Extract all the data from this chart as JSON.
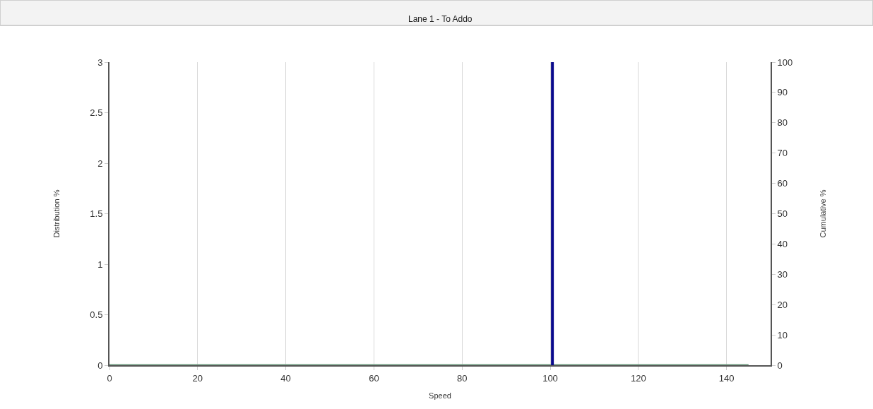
{
  "chart_data": {
    "type": "line",
    "title": "Lane 1 - To Addo",
    "xlabel": "Speed",
    "ylabel": "Distribution %",
    "y2label": "Cumulative %",
    "xlim": [
      0,
      150
    ],
    "xticks": [
      0,
      20,
      40,
      60,
      80,
      100,
      120,
      140
    ],
    "ylim": [
      0,
      3
    ],
    "yticks": [
      0,
      0.5,
      1,
      1.5,
      2,
      2.5,
      3
    ],
    "y2lim": [
      0,
      100
    ],
    "y2ticks": [
      0,
      10,
      20,
      30,
      40,
      50,
      60,
      70,
      80,
      90,
      100
    ],
    "series": [
      {
        "axis": "y2",
        "color": "#6f9a80",
        "x": [
          0,
          145
        ],
        "values": [
          0,
          0
        ]
      }
    ],
    "ref_lines": [
      {
        "axis": "x",
        "value": 100.5,
        "color": "#0a0a8c"
      }
    ],
    "grid": "x"
  }
}
